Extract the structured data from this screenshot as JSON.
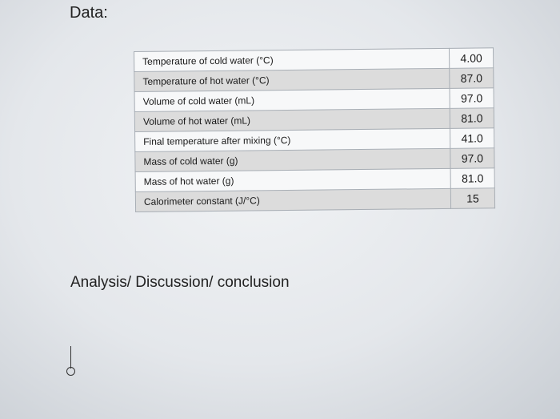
{
  "headings": {
    "data": "Data:",
    "analysis": "Analysis/ Discussion/ conclusion"
  },
  "table": {
    "rows": [
      {
        "label": "Temperature of cold water (°C)",
        "value": "4.00"
      },
      {
        "label": "Temperature of hot water (°C)",
        "value": "87.0"
      },
      {
        "label": "Volume of cold water (mL)",
        "value": "97.0"
      },
      {
        "label": "Volume of hot water (mL)",
        "value": "81.0"
      },
      {
        "label": "Final temperature after mixing (°C)",
        "value": "41.0"
      },
      {
        "label": "Mass of cold water (g)",
        "value": "97.0"
      },
      {
        "label": "Mass of hot water (g)",
        "value": "81.0"
      },
      {
        "label": "Calorimeter constant (J/°C)",
        "value": "15"
      }
    ]
  }
}
